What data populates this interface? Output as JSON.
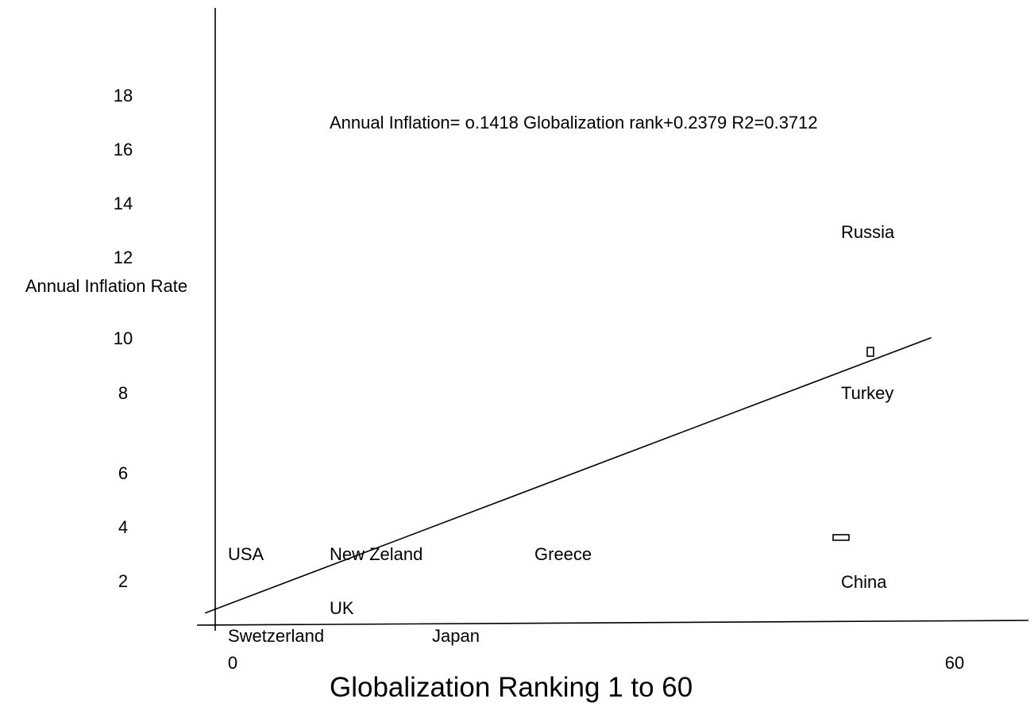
{
  "chart_data": {
    "type": "scatter",
    "xlabel": "Globalization Ranking 1 to 60",
    "ylabel": "Annual Inflation Rate",
    "equation": "Annual Inflation= o.1418 Globalization rank+0.2379  R2=0.3712",
    "x_tick_labels": [
      "0",
      "60"
    ],
    "y_tick_labels": [
      "2",
      "4",
      "6",
      "8",
      "10",
      "12",
      "14",
      "16",
      "18"
    ],
    "points": [
      {
        "label": "USA",
        "x": 1,
        "y": 3
      },
      {
        "label": "New Zeland",
        "x": 10,
        "y": 3
      },
      {
        "label": "Greece",
        "x": 30,
        "y": 3
      },
      {
        "label": "UK",
        "x": 10,
        "y": 1
      },
      {
        "label": "Swetzerland",
        "x": 1,
        "y": 0
      },
      {
        "label": "Japan",
        "x": 20,
        "y": 0
      },
      {
        "label": "Russia",
        "x": 60,
        "y": 14
      },
      {
        "label": "Turkey",
        "x": 60,
        "y": 9
      },
      {
        "label": "China",
        "x": 60,
        "y": 2
      }
    ],
    "markers": [
      {
        "x": 64,
        "y": 9.8
      },
      {
        "x": 61,
        "y": 3.2
      }
    ],
    "trendline": {
      "slope": 0.1418,
      "intercept": 0.2379,
      "x_start": -1,
      "x_end": 71
    }
  }
}
